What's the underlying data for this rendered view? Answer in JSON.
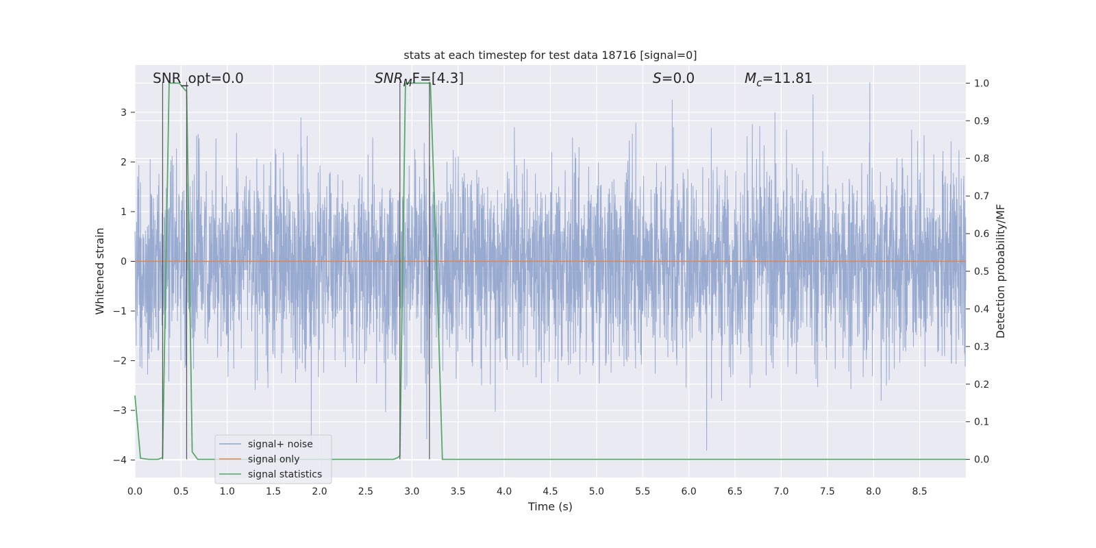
{
  "chart_data": {
    "type": "line",
    "title": "stats at each timestep for test data 18716 [signal=0]",
    "xlabel": "Time (s)",
    "ylabel_left": "Whitened strain",
    "ylabel_right": "Detection probability/MF",
    "xlim": [
      0.0,
      9.0
    ],
    "ylim_left": [
      -4.35,
      3.95
    ],
    "ylim_right": [
      -0.048,
      1.048
    ],
    "xticks": [
      "0.0",
      "0.5",
      "1.0",
      "1.5",
      "2.0",
      "2.5",
      "3.0",
      "3.5",
      "4.0",
      "4.5",
      "5.0",
      "5.5",
      "6.0",
      "6.5",
      "7.0",
      "7.5",
      "8.0",
      "8.5"
    ],
    "yticks_left": [
      "3",
      "2",
      "1",
      "0",
      "−1",
      "−2",
      "−3",
      "−4"
    ],
    "yticks_right": [
      "1.0",
      "0.9",
      "0.8",
      "0.7",
      "0.6",
      "0.5",
      "0.4",
      "0.3",
      "0.2",
      "0.1",
      "0.0"
    ],
    "grid": true,
    "legend_position": "lower-left",
    "annotations": {
      "snr_opt": "SNR_opt=0.0",
      "snr_mf_prefix": "SNR",
      "snr_mf_sub": "M",
      "snr_mf_suffix": "F=[4.3]",
      "s_prefix": "S",
      "s_suffix": "=0.0",
      "mc_prefix": "M",
      "mc_sub": "c",
      "mc_suffix": "=11.81"
    },
    "series": [
      {
        "name": "signal+ noise",
        "color": "#8fa3cc",
        "description": "whitened noise time series",
        "amplitude_typical": 1.3,
        "range": [
          -4.0,
          3.6
        ]
      },
      {
        "name": "signal only",
        "color": "#dd8452",
        "values_constant": 0.0
      },
      {
        "name": "signal statistics",
        "color": "#55a868",
        "axis": "right",
        "x": [
          0.0,
          0.06,
          0.15,
          0.25,
          0.3,
          0.37,
          0.48,
          0.55,
          0.56,
          0.62,
          0.68,
          0.8,
          2.8,
          2.85,
          2.87,
          2.93,
          3.0,
          3.1,
          3.2,
          3.27,
          3.33,
          4.0,
          9.0
        ],
        "y": [
          0.17,
          0.003,
          0.0,
          0.0,
          0.005,
          1.0,
          1.0,
          0.98,
          0.98,
          0.02,
          0.0,
          0.0,
          0.0,
          0.005,
          0.01,
          1.0,
          1.0,
          1.0,
          1.0,
          0.5,
          0.0,
          0.0,
          0.0
        ]
      }
    ],
    "vertical_markers": {
      "color": "#555555",
      "x": [
        0.3,
        0.56,
        2.87,
        3.19
      ]
    }
  }
}
